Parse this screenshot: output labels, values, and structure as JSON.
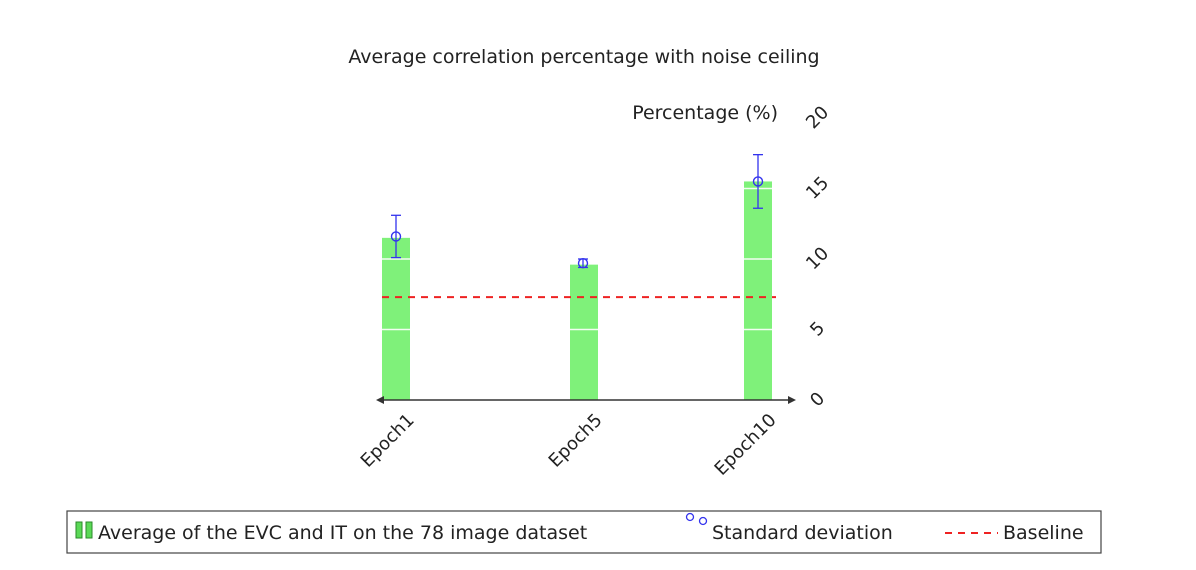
{
  "chart_data": {
    "type": "bar",
    "title": "Average correlation percentage with noise ceiling",
    "ylabel": "Percentage (%)",
    "xlabel": "",
    "categories": [
      "Epoch1",
      "Epoch5",
      "Epoch10"
    ],
    "ylim": [
      0,
      20
    ],
    "yticks": [
      0,
      5,
      10,
      15,
      20
    ],
    "horizontal_grid": true,
    "y_axis_side": "right",
    "series": [
      {
        "name": "Average of the EVC and IT on the 78 image dataset",
        "values": [
          11.5,
          9.6,
          15.5
        ],
        "color": "#7ff17a"
      },
      {
        "name": "Standard deviation",
        "values": [
          11.6,
          9.7,
          15.5
        ],
        "error": [
          1.5,
          0.3,
          1.9
        ],
        "color": "#3333ee"
      },
      {
        "name": "Baseline",
        "value": 7.3,
        "style": "dashed",
        "color": "#ee2222"
      }
    ],
    "legend_position": "bottom"
  }
}
